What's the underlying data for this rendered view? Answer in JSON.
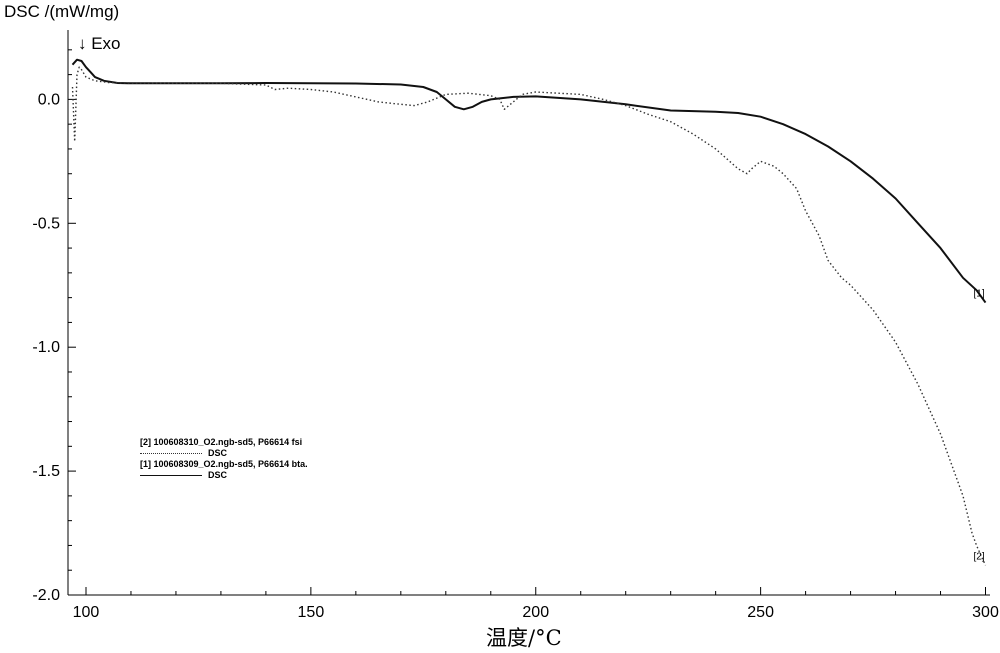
{
  "chart_data": {
    "type": "line",
    "ylabel": "DSC /(mW/mg)",
    "direction_label": "↓ Exo",
    "xlabel": "温度/°C",
    "xlim": [
      96,
      301
    ],
    "ylim": [
      -2.0,
      0.28
    ],
    "xticks": [
      100,
      150,
      200,
      250,
      300
    ],
    "yticks": [
      0.0,
      -0.5,
      -1.0,
      -1.5,
      -2.0
    ],
    "ytick_labels": [
      "0.0",
      "-0.5",
      "-1.0",
      "-1.5",
      "-2.0"
    ],
    "grid": false,
    "series": [
      {
        "name": "[1] 100608309_O2.ngb-sd5, P66614 bta.",
        "legend_sub": "DSC",
        "tag": "[1]",
        "style": "solid",
        "color": "#111111",
        "x": [
          97,
          98,
          99,
          100,
          101,
          102,
          104,
          107,
          110,
          120,
          130,
          140,
          150,
          160,
          170,
          175,
          178,
          180,
          182,
          184,
          186,
          188,
          190,
          192,
          195,
          200,
          210,
          220,
          230,
          240,
          245,
          250,
          255,
          260,
          265,
          270,
          275,
          280,
          285,
          290,
          295,
          298,
          300
        ],
        "y": [
          0.14,
          0.16,
          0.155,
          0.13,
          0.11,
          0.09,
          0.075,
          0.066,
          0.065,
          0.065,
          0.065,
          0.066,
          0.065,
          0.064,
          0.06,
          0.05,
          0.03,
          0.0,
          -0.03,
          -0.04,
          -0.03,
          -0.01,
          0.0,
          0.004,
          0.01,
          0.012,
          0.0,
          -0.02,
          -0.045,
          -0.05,
          -0.055,
          -0.07,
          -0.1,
          -0.14,
          -0.19,
          -0.25,
          -0.32,
          -0.4,
          -0.5,
          -0.6,
          -0.72,
          -0.77,
          -0.82
        ]
      },
      {
        "name": "[2] 100608310_O2.ngb-sd5, P66614 fsi",
        "legend_sub": "DSC",
        "tag": "[2]",
        "style": "dotted",
        "color": "#333333",
        "x": [
          97,
          97.5,
          98,
          98.5,
          99,
          100,
          102,
          105,
          110,
          120,
          130,
          140,
          142,
          145,
          150,
          155,
          160,
          165,
          170,
          173,
          176,
          180,
          185,
          190,
          192,
          193,
          195,
          197,
          200,
          205,
          210,
          215,
          220,
          225,
          230,
          235,
          240,
          245,
          247,
          248,
          250,
          253,
          255,
          258,
          260,
          263,
          265,
          268,
          270,
          275,
          280,
          285,
          290,
          295,
          297,
          298,
          299,
          300
        ],
        "y": [
          0.05,
          -0.17,
          0.1,
          0.13,
          0.12,
          0.09,
          0.075,
          0.068,
          0.066,
          0.065,
          0.065,
          0.058,
          0.04,
          0.045,
          0.04,
          0.03,
          0.01,
          -0.01,
          -0.02,
          -0.025,
          -0.01,
          0.02,
          0.025,
          0.015,
          0.0,
          -0.04,
          -0.01,
          0.02,
          0.03,
          0.025,
          0.02,
          0.0,
          -0.025,
          -0.06,
          -0.09,
          -0.14,
          -0.2,
          -0.28,
          -0.3,
          -0.28,
          -0.25,
          -0.27,
          -0.3,
          -0.36,
          -0.45,
          -0.55,
          -0.65,
          -0.72,
          -0.75,
          -0.85,
          -0.98,
          -1.15,
          -1.35,
          -1.6,
          -1.75,
          -1.8,
          -1.84,
          -1.88
        ]
      }
    ]
  }
}
